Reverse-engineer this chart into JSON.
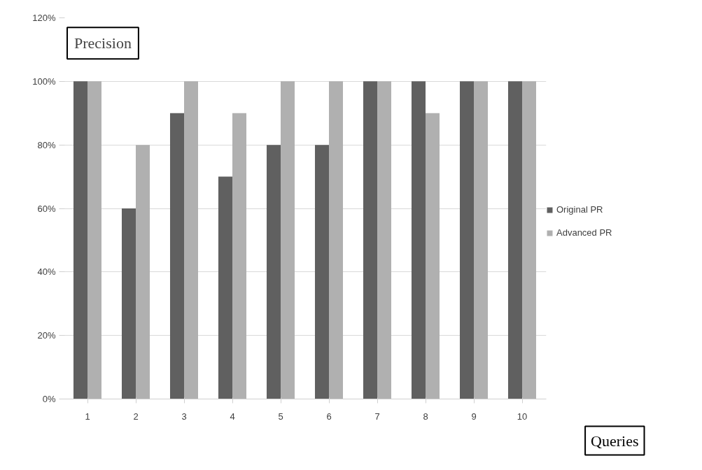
{
  "chart_data": {
    "type": "bar",
    "ylabel": "Precision",
    "xlabel": "Queries",
    "categories": [
      "1",
      "2",
      "3",
      "4",
      "5",
      "6",
      "7",
      "8",
      "9",
      "10"
    ],
    "series": [
      {
        "name": "Original PR",
        "color": "#606060",
        "values": [
          100,
          60,
          90,
          70,
          80,
          80,
          100,
          100,
          100,
          100
        ]
      },
      {
        "name": "Advanced PR",
        "color": "#b0b0b0",
        "values": [
          100,
          80,
          100,
          90,
          100,
          100,
          100,
          90,
          100,
          100
        ]
      }
    ],
    "ylim": [
      0,
      120
    ],
    "yticks": [
      {
        "value": 0,
        "label": "0%"
      },
      {
        "value": 20,
        "label": "20%"
      },
      {
        "value": 40,
        "label": "40%"
      },
      {
        "value": 60,
        "label": "60%"
      },
      {
        "value": 80,
        "label": "80%"
      },
      {
        "value": 100,
        "label": "100%"
      },
      {
        "value": 120,
        "label": "120%"
      }
    ],
    "grid": "y",
    "legend": "right"
  }
}
